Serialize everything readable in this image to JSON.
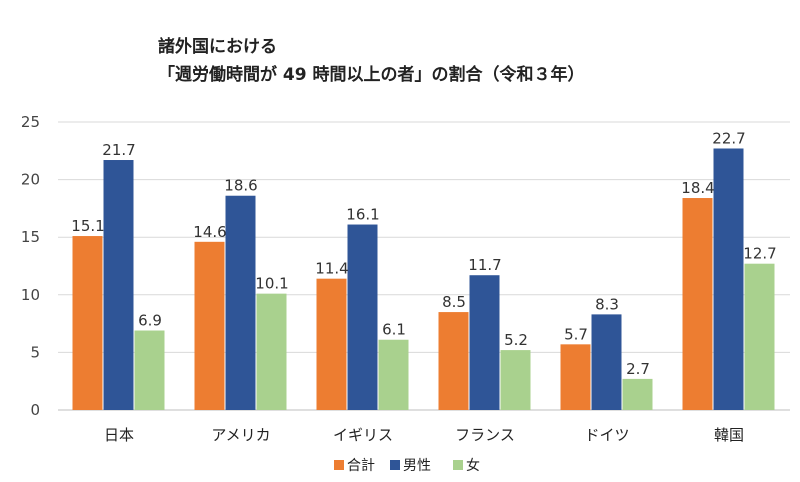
{
  "chart_data": {
    "type": "bar",
    "title_lines": [
      "諸外国における",
      "「週労働時間が 49 時間以上の者」の割合（令和３年）"
    ],
    "categories": [
      "日本",
      "アメリカ",
      "イギリス",
      "フランス",
      "ドイツ",
      "韓国"
    ],
    "series": [
      {
        "name": "合計",
        "color": "#ed7d31",
        "values": [
          15.1,
          14.6,
          11.4,
          8.5,
          5.7,
          18.4
        ]
      },
      {
        "name": "男性",
        "color": "#2f5597",
        "values": [
          21.7,
          18.6,
          16.1,
          11.7,
          8.3,
          22.7
        ]
      },
      {
        "name": "女",
        "color": "#a9d18e",
        "values": [
          6.9,
          10.1,
          6.1,
          5.2,
          2.7,
          12.7
        ]
      }
    ],
    "ylim": [
      0,
      25
    ],
    "yticks": [
      0,
      5,
      10,
      15,
      20,
      25
    ],
    "grid": true,
    "legend_position": "bottom"
  }
}
